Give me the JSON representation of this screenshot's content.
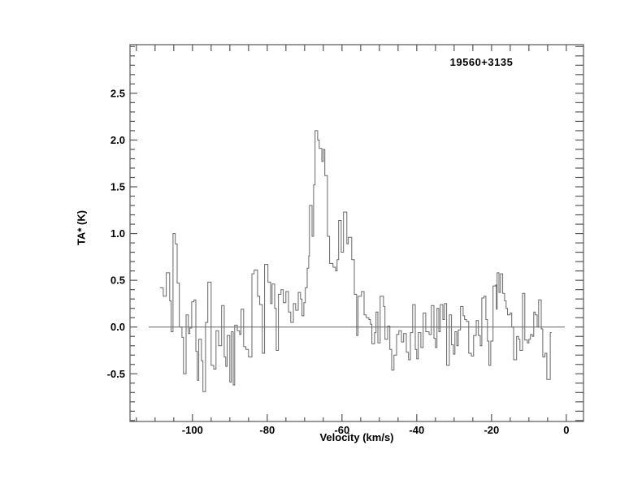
{
  "chart_data": {
    "type": "line",
    "style": "histogram-step",
    "title": "19560+3135",
    "xlabel": "Velocity (km/s)",
    "ylabel": "TA* (K)",
    "xlim": [
      -116.7,
      4.6
    ],
    "ylim": [
      -1.01,
      3.02
    ],
    "grid": false,
    "legend": "none",
    "x_ticks": [
      {
        "v": -100,
        "label": "-100"
      },
      {
        "v": -80,
        "label": "-80"
      },
      {
        "v": -60,
        "label": "-60"
      },
      {
        "v": -40,
        "label": "-40"
      },
      {
        "v": -20,
        "label": "-20"
      },
      {
        "v": 0,
        "label": "0"
      }
    ],
    "x_minor_step": 5,
    "y_ticks": [
      {
        "v": -0.5,
        "label": "-0.5"
      },
      {
        "v": 0.0,
        "label": "0.0"
      },
      {
        "v": 0.5,
        "label": "0.5"
      },
      {
        "v": 1.0,
        "label": "1.0"
      },
      {
        "v": 1.5,
        "label": "1.5"
      },
      {
        "v": 2.0,
        "label": "2.0"
      },
      {
        "v": 2.5,
        "label": "2.5"
      }
    ],
    "y_minor_step": 0.1,
    "baseline": {
      "y": 0.0,
      "x_from": -111.7,
      "x_to": -0.4
    },
    "colors": {
      "trace": "#666666",
      "axis": "#555555",
      "baseline": "#666666",
      "text": "#000000",
      "background": "#ffffff"
    },
    "peak_annotation": {
      "velocity": -65,
      "ta_max": 2.1
    },
    "points": [
      [
        -108.7,
        0.42
      ],
      [
        -107.8,
        0.33
      ],
      [
        -107.0,
        0.58
      ],
      [
        -106.1,
        0.28
      ],
      [
        -105.7,
        -0.05
      ],
      [
        -105.2,
        1.0
      ],
      [
        -104.6,
        0.89
      ],
      [
        -104.1,
        0.47
      ],
      [
        -103.5,
        0.0
      ],
      [
        -102.8,
        -0.11
      ],
      [
        -102.4,
        -0.5
      ],
      [
        -101.7,
        0.13
      ],
      [
        -101.1,
        -0.07
      ],
      [
        -100.7,
        -0.01
      ],
      [
        -100.2,
        0.27
      ],
      [
        -99.6,
        0.29
      ],
      [
        -99.1,
        -0.26
      ],
      [
        -98.7,
        -0.57
      ],
      [
        -98.3,
        -0.13
      ],
      [
        -97.6,
        -0.36
      ],
      [
        -97.2,
        -0.69
      ],
      [
        -96.5,
        0.05
      ],
      [
        -95.9,
        0.48
      ],
      [
        -95.0,
        -0.41
      ],
      [
        -94.3,
        -0.45
      ],
      [
        -93.7,
        -0.04
      ],
      [
        -93.0,
        -0.2
      ],
      [
        -92.2,
        0.23
      ],
      [
        -91.5,
        -0.32
      ],
      [
        -91.1,
        -0.42
      ],
      [
        -90.7,
        -0.09
      ],
      [
        -90.0,
        -0.59
      ],
      [
        -89.6,
        -0.05
      ],
      [
        -89.1,
        -0.62
      ],
      [
        -88.7,
        0.02
      ],
      [
        -88.0,
        -0.04
      ],
      [
        -87.4,
        -0.08
      ],
      [
        -87.0,
        0.19
      ],
      [
        -86.3,
        -0.21
      ],
      [
        -85.7,
        -0.24
      ],
      [
        -85.0,
        -0.32
      ],
      [
        -84.1,
        0.57
      ],
      [
        -83.5,
        0.61
      ],
      [
        -82.6,
        0.33
      ],
      [
        -82.0,
        0.24
      ],
      [
        -81.3,
        -0.28
      ],
      [
        -80.7,
        0.67
      ],
      [
        -79.8,
        0.48
      ],
      [
        -79.1,
        0.25
      ],
      [
        -78.7,
        0.46
      ],
      [
        -78.0,
        0.2
      ],
      [
        -77.6,
        -0.25
      ],
      [
        -77.0,
        0.35
      ],
      [
        -76.3,
        0.4
      ],
      [
        -75.7,
        0.26
      ],
      [
        -75.0,
        0.38
      ],
      [
        -74.3,
        0.16
      ],
      [
        -73.7,
        0.05
      ],
      [
        -73.0,
        0.25
      ],
      [
        -72.4,
        0.18
      ],
      [
        -71.7,
        0.37
      ],
      [
        -71.1,
        0.3
      ],
      [
        -70.7,
        0.12
      ],
      [
        -70.2,
        0.26
      ],
      [
        -69.8,
        0.42
      ],
      [
        -69.3,
        0.63
      ],
      [
        -68.9,
        0.76
      ],
      [
        -68.7,
        1.3
      ],
      [
        -68.0,
        0.97
      ],
      [
        -67.6,
        1.52
      ],
      [
        -67.2,
        2.1
      ],
      [
        -66.5,
        2.0
      ],
      [
        -66.1,
        1.91
      ],
      [
        -65.4,
        1.77
      ],
      [
        -65.0,
        1.9
      ],
      [
        -64.6,
        1.62
      ],
      [
        -63.9,
        0.97
      ],
      [
        -63.3,
        0.68
      ],
      [
        -62.4,
        0.64
      ],
      [
        -61.7,
        0.6
      ],
      [
        -61.3,
        0.72
      ],
      [
        -60.9,
        1.14
      ],
      [
        -60.2,
        0.8
      ],
      [
        -59.6,
        1.23
      ],
      [
        -58.7,
        0.89
      ],
      [
        -58.3,
        0.96
      ],
      [
        -57.4,
        0.72
      ],
      [
        -56.7,
        0.35
      ],
      [
        -56.1,
        -0.09
      ],
      [
        -55.7,
        0.33
      ],
      [
        -54.8,
        0.38
      ],
      [
        -54.1,
        0.13
      ],
      [
        -53.5,
        0.1
      ],
      [
        -52.8,
        0.08
      ],
      [
        -52.4,
        0.03
      ],
      [
        -52.0,
        -0.18
      ],
      [
        -51.3,
        -0.06
      ],
      [
        -50.9,
        0.16
      ],
      [
        -50.4,
        -0.17
      ],
      [
        -49.8,
        0.33
      ],
      [
        -48.9,
        0.22
      ],
      [
        -48.5,
        -0.13
      ],
      [
        -47.8,
        0.01
      ],
      [
        -47.2,
        -0.24
      ],
      [
        -46.7,
        -0.46
      ],
      [
        -46.1,
        -0.3
      ],
      [
        -45.4,
        -0.08
      ],
      [
        -44.8,
        -0.04
      ],
      [
        -44.1,
        -0.16
      ],
      [
        -43.5,
        -0.07
      ],
      [
        -42.8,
        -0.27
      ],
      [
        -42.2,
        -0.35
      ],
      [
        -41.7,
        -0.06
      ],
      [
        -41.1,
        0.24
      ],
      [
        -40.4,
        -0.24
      ],
      [
        -40.0,
        -0.34
      ],
      [
        -39.6,
        -0.06
      ],
      [
        -38.9,
        -0.22
      ],
      [
        -38.3,
        0.15
      ],
      [
        -37.6,
        -0.05
      ],
      [
        -36.7,
        -0.08
      ],
      [
        -36.1,
        0.23
      ],
      [
        -35.4,
        -0.12
      ],
      [
        -35.0,
        -0.22
      ],
      [
        -34.6,
        0.2
      ],
      [
        -34.1,
        -0.05
      ],
      [
        -33.7,
        0.24
      ],
      [
        -33.0,
        0.08
      ],
      [
        -32.6,
        0.25
      ],
      [
        -32.0,
        -0.41
      ],
      [
        -31.3,
        0.13
      ],
      [
        -30.7,
        -0.19
      ],
      [
        -30.2,
        -0.29
      ],
      [
        -29.8,
        -0.05
      ],
      [
        -29.3,
        -0.2
      ],
      [
        -28.9,
        -0.03
      ],
      [
        -28.3,
        0.22
      ],
      [
        -27.6,
        0.12
      ],
      [
        -27.2,
        0.08
      ],
      [
        -26.7,
        0.06
      ],
      [
        -26.1,
        -0.28
      ],
      [
        -25.4,
        -0.31
      ],
      [
        -24.8,
        -0.09
      ],
      [
        -24.1,
        0.07
      ],
      [
        -23.5,
        -0.09
      ],
      [
        -23.0,
        -0.2
      ],
      [
        -22.6,
        0.31
      ],
      [
        -22.0,
        0.33
      ],
      [
        -21.5,
        0.08
      ],
      [
        -21.1,
        -0.15
      ],
      [
        -20.7,
        -0.41
      ],
      [
        -20.2,
        -0.15
      ],
      [
        -19.6,
        0.44
      ],
      [
        -18.9,
        0.45
      ],
      [
        -18.7,
        0.19
      ],
      [
        -18.5,
        0.58
      ],
      [
        -18.0,
        0.37
      ],
      [
        -17.6,
        0.57
      ],
      [
        -17.0,
        0.36
      ],
      [
        -16.5,
        0.28
      ],
      [
        -16.1,
        0.2
      ],
      [
        -15.7,
        0.13
      ],
      [
        -15.0,
        0.15
      ],
      [
        -14.6,
        0.0
      ],
      [
        -14.1,
        -0.35
      ],
      [
        -13.3,
        -0.1
      ],
      [
        -12.8,
        -0.13
      ],
      [
        -12.4,
        -0.25
      ],
      [
        -11.7,
        0.36
      ],
      [
        -11.1,
        -0.14
      ],
      [
        -10.4,
        -0.17
      ],
      [
        -10.0,
        -0.13
      ],
      [
        -9.6,
        -0.08
      ],
      [
        -9.1,
        -0.1
      ],
      [
        -8.7,
        0.16
      ],
      [
        -8.3,
        0.13
      ],
      [
        -7.8,
        0.0
      ],
      [
        -7.4,
        0.29
      ],
      [
        -6.7,
        -0.02
      ],
      [
        -6.3,
        -0.32
      ],
      [
        -5.7,
        -0.28
      ],
      [
        -5.2,
        -0.56
      ],
      [
        -4.3,
        -0.06
      ],
      [
        -3.9,
        -0.06
      ]
    ]
  }
}
